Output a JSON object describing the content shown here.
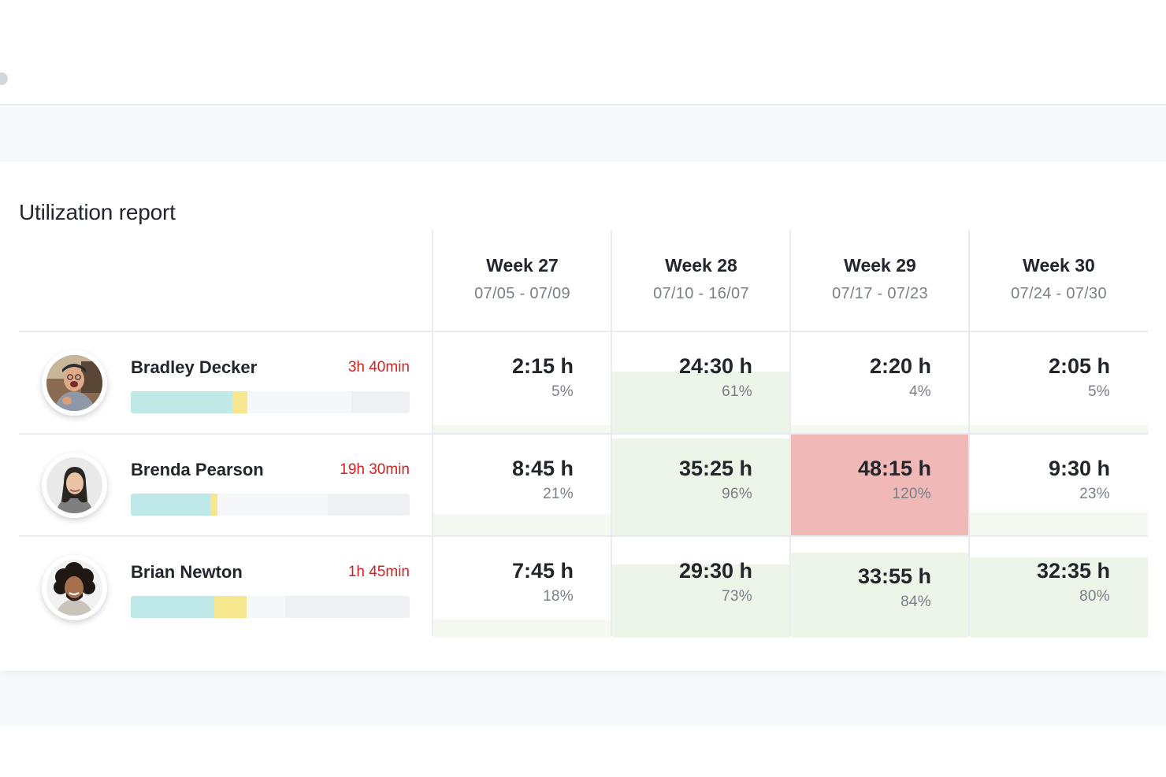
{
  "report": {
    "title": "Utilization report",
    "weeks": [
      {
        "label": "Week 27",
        "range": "07/05 - 07/09"
      },
      {
        "label": "Week 28",
        "range": "07/10 - 16/07"
      },
      {
        "label": "Week 29",
        "range": "07/17 - 07/23"
      },
      {
        "label": "Week 30",
        "range": "07/24 - 07/30"
      }
    ],
    "people": [
      {
        "name": "Bradley Decker",
        "overtime": "3h 40min",
        "bar": {
          "primary_fraction": 0.365,
          "overtime_fraction": 0.055,
          "capacity_fraction": 0.79
        },
        "cells": [
          {
            "value": "2:15 h",
            "percent": "5%",
            "utilization": 0.05,
            "status": "under"
          },
          {
            "value": "24:30 h",
            "percent": "61%",
            "utilization": 0.61,
            "status": "normal"
          },
          {
            "value": "2:20 h",
            "percent": "4%",
            "utilization": 0.04,
            "status": "under"
          },
          {
            "value": "2:05 h",
            "percent": "5%",
            "utilization": 0.05,
            "status": "under"
          }
        ]
      },
      {
        "name": "Brenda Pearson",
        "overtime": "19h 30min",
        "bar": {
          "primary_fraction": 0.285,
          "overtime_fraction": 0.025,
          "capacity_fraction": 0.705
        },
        "cells": [
          {
            "value": "8:45 h",
            "percent": "21%",
            "utilization": 0.21,
            "status": "under"
          },
          {
            "value": "35:25 h",
            "percent": "96%",
            "utilization": 0.96,
            "status": "normal"
          },
          {
            "value": "48:15 h",
            "percent": "120%",
            "utilization": 1.2,
            "status": "over"
          },
          {
            "value": "9:30 h",
            "percent": "23%",
            "utilization": 0.23,
            "status": "under"
          }
        ]
      },
      {
        "name": "Brian Newton",
        "overtime": "1h 45min",
        "bar": {
          "primary_fraction": 0.3,
          "overtime_fraction": 0.115,
          "capacity_fraction": 0.555
        },
        "cells": [
          {
            "value": "7:45 h",
            "percent": "18%",
            "utilization": 0.18,
            "status": "under"
          },
          {
            "value": "29:30 h",
            "percent": "73%",
            "utilization": 0.73,
            "status": "normal"
          },
          {
            "value": "33:55 h",
            "percent": "84%",
            "utilization": 0.84,
            "status": "normal"
          },
          {
            "value": "32:35 h",
            "percent": "80%",
            "utilization": 0.8,
            "status": "normal"
          }
        ]
      }
    ]
  },
  "colors": {
    "under_fill": "#f3f8f1",
    "normal_fill": "#ecf5e8",
    "over_fill": "#f0b8b6",
    "overtime_text": "#d22020",
    "bar_primary": "#bfe8e8",
    "bar_overtime": "#f6e68e",
    "bar_capacity": "#f6f7fa",
    "bar_track": "#eef0f4"
  },
  "icons": {
    "avatar_1": "avatar-bradley-decker",
    "avatar_2": "avatar-brenda-pearson",
    "avatar_3": "avatar-brian-newton"
  }
}
